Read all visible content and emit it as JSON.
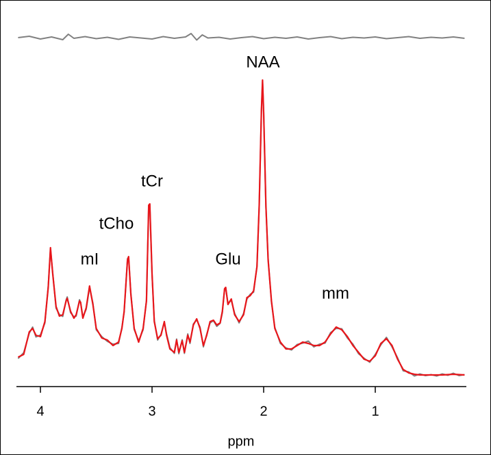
{
  "chart_data": {
    "type": "line",
    "x_label": "ppm",
    "xlim": [
      4.215,
      0.184
    ],
    "ylim": [
      0,
      106
    ],
    "xticks": [
      4,
      3,
      2,
      1
    ],
    "annotations": [
      "NAA",
      "tCr",
      "tCho",
      "mI",
      "Glu",
      "mm"
    ],
    "series": [
      {
        "color": "#808080",
        "x": [
          4.2,
          4.15,
          4.1,
          4.07,
          4.04,
          4.0,
          3.96,
          3.93,
          3.91,
          3.89,
          3.86,
          3.83,
          3.8,
          3.77,
          3.76,
          3.73,
          3.7,
          3.68,
          3.65,
          3.64,
          3.62,
          3.59,
          3.56,
          3.53,
          3.5,
          3.45,
          3.4,
          3.35,
          3.3,
          3.27,
          3.25,
          3.22,
          3.21,
          3.19,
          3.16,
          3.12,
          3.08,
          3.05,
          3.03,
          3.02,
          3.0,
          2.98,
          2.95,
          2.92,
          2.89,
          2.87,
          2.84,
          2.8,
          2.78,
          2.76,
          2.73,
          2.71,
          2.68,
          2.66,
          2.63,
          2.6,
          2.57,
          2.54,
          2.51,
          2.48,
          2.45,
          2.42,
          2.39,
          2.37,
          2.35,
          2.34,
          2.32,
          2.29,
          2.26,
          2.22,
          2.18,
          2.15,
          2.12,
          2.09,
          2.06,
          2.04,
          2.02,
          2.01,
          2.0,
          1.98,
          1.96,
          1.93,
          1.9,
          1.85,
          1.8,
          1.75,
          1.7,
          1.65,
          1.6,
          1.55,
          1.5,
          1.45,
          1.4,
          1.35,
          1.3,
          1.25,
          1.2,
          1.15,
          1.1,
          1.05,
          1.0,
          0.95,
          0.9,
          0.85,
          0.8,
          0.75,
          0.7,
          0.65,
          0.6,
          0.55,
          0.5,
          0.45,
          0.4,
          0.35,
          0.3,
          0.25,
          0.2
        ],
        "values": [
          7.2,
          8.9,
          14.6,
          16.4,
          13.5,
          14.1,
          17.6,
          28.4,
          39.2,
          32.3,
          21.9,
          20.1,
          19.5,
          24.3,
          25.2,
          20.6,
          19.4,
          19.6,
          24.4,
          23.6,
          19.4,
          21.6,
          28.0,
          23.4,
          15.6,
          13.6,
          12.2,
          11.4,
          11.6,
          16.3,
          20.7,
          36.4,
          36.8,
          26.4,
          15.7,
          12.4,
          15.6,
          24.3,
          51.8,
          52.0,
          31.6,
          18.4,
          12.6,
          14.3,
          17.7,
          14.4,
          10.4,
          8.7,
          12.9,
          8.6,
          12.7,
          8.7,
          14.4,
          11.6,
          17.3,
          18.5,
          16.4,
          10.6,
          14.3,
          17.6,
          18.3,
          16.6,
          17.5,
          20.6,
          27.6,
          27.8,
          23.4,
          24.2,
          20.4,
          17.6,
          20.4,
          24.6,
          26.0,
          26.6,
          34.3,
          51.7,
          79.6,
          88.4,
          79.3,
          51.6,
          36.4,
          23.6,
          16.3,
          11.6,
          10.3,
          9.7,
          11.3,
          11.7,
          12.3,
          10.6,
          11.4,
          11.7,
          14.8,
          16.0,
          15.9,
          13.2,
          11.4,
          8.6,
          7.3,
          6.1,
          8.4,
          11.2,
          13.4,
          10.6,
          7.4,
          3.6,
          3.3,
          2.1,
          2.7,
          2.2,
          2.5,
          2.1,
          2.7,
          2.3,
          2.9,
          2.2,
          2.5
        ]
      },
      {
        "color": "#808080",
        "x": [
          4.2,
          4.1,
          4.0,
          3.9,
          3.8,
          3.75,
          3.7,
          3.6,
          3.5,
          3.4,
          3.3,
          3.2,
          3.1,
          3.0,
          2.9,
          2.8,
          2.7,
          2.65,
          2.6,
          2.55,
          2.5,
          2.4,
          2.3,
          2.2,
          2.1,
          2.0,
          1.9,
          1.8,
          1.7,
          1.6,
          1.5,
          1.4,
          1.3,
          1.2,
          1.1,
          1.0,
          0.9,
          0.8,
          0.7,
          0.6,
          0.5,
          0.4,
          0.3,
          0.2
        ],
        "values": [
          101.0,
          101.4,
          100.6,
          101.2,
          100.4,
          102.0,
          100.8,
          101.3,
          100.7,
          101.1,
          100.5,
          101.2,
          100.9,
          100.6,
          101.3,
          100.8,
          101.2,
          102.2,
          100.3,
          101.8,
          100.9,
          101.1,
          100.6,
          101.0,
          101.3,
          100.7,
          101.1,
          100.8,
          101.2,
          100.6,
          101.0,
          101.3,
          100.7,
          101.1,
          100.9,
          101.2,
          100.7,
          101.0,
          101.3,
          100.8,
          101.1,
          100.9,
          101.2,
          100.8
        ]
      },
      {
        "color": "#e8161b",
        "x": [
          4.2,
          4.15,
          4.1,
          4.07,
          4.04,
          4.0,
          3.96,
          3.93,
          3.91,
          3.89,
          3.86,
          3.83,
          3.8,
          3.77,
          3.76,
          3.73,
          3.7,
          3.68,
          3.65,
          3.64,
          3.62,
          3.59,
          3.56,
          3.53,
          3.5,
          3.45,
          3.4,
          3.35,
          3.3,
          3.27,
          3.25,
          3.22,
          3.21,
          3.19,
          3.16,
          3.12,
          3.08,
          3.05,
          3.03,
          3.02,
          3.0,
          2.98,
          2.95,
          2.92,
          2.89,
          2.87,
          2.84,
          2.8,
          2.78,
          2.76,
          2.73,
          2.71,
          2.68,
          2.66,
          2.63,
          2.6,
          2.57,
          2.54,
          2.51,
          2.48,
          2.45,
          2.42,
          2.39,
          2.37,
          2.35,
          2.34,
          2.32,
          2.29,
          2.26,
          2.22,
          2.18,
          2.15,
          2.12,
          2.09,
          2.06,
          2.04,
          2.02,
          2.01,
          2.0,
          1.98,
          1.96,
          1.93,
          1.9,
          1.85,
          1.8,
          1.75,
          1.7,
          1.65,
          1.6,
          1.55,
          1.5,
          1.45,
          1.4,
          1.35,
          1.3,
          1.25,
          1.2,
          1.15,
          1.1,
          1.05,
          1.0,
          0.95,
          0.9,
          0.85,
          0.8,
          0.75,
          0.7,
          0.65,
          0.6,
          0.55,
          0.5,
          0.45,
          0.4,
          0.35,
          0.3,
          0.25,
          0.2
        ],
        "values": [
          7.6,
          8.4,
          15.0,
          16.0,
          14.0,
          13.6,
          18.0,
          28.0,
          39.6,
          32.0,
          22.4,
          19.6,
          20.0,
          24.0,
          24.8,
          21.0,
          19.0,
          20.0,
          24.0,
          23.6,
          19.0,
          22.0,
          28.4,
          23.0,
          16.0,
          13.2,
          12.6,
          11.0,
          12.0,
          16.0,
          21.0,
          36.0,
          37.0,
          26.0,
          16.0,
          12.0,
          16.0,
          24.0,
          52.0,
          52.4,
          32.0,
          18.0,
          13.0,
          14.0,
          18.0,
          14.0,
          10.0,
          9.0,
          12.6,
          9.0,
          12.4,
          9.0,
          14.0,
          12.0,
          17.0,
          18.8,
          16.0,
          11.0,
          14.0,
          18.0,
          18.4,
          17.0,
          17.6,
          21.0,
          27.6,
          28.0,
          23.0,
          24.6,
          20.0,
          18.0,
          20.0,
          25.0,
          25.6,
          27.0,
          34.0,
          52.0,
          80.0,
          88.6,
          79.0,
          52.0,
          36.0,
          24.0,
          16.0,
          12.0,
          10.0,
          10.0,
          11.0,
          12.0,
          11.6,
          11.0,
          11.0,
          12.0,
          14.4,
          16.4,
          15.6,
          13.6,
          11.0,
          9.0,
          7.0,
          6.4,
          8.0,
          11.6,
          13.0,
          11.0,
          7.0,
          4.0,
          3.0,
          2.6,
          2.4,
          2.4,
          2.4,
          2.4,
          2.4,
          2.5,
          2.6,
          2.5,
          2.4
        ]
      }
    ]
  }
}
